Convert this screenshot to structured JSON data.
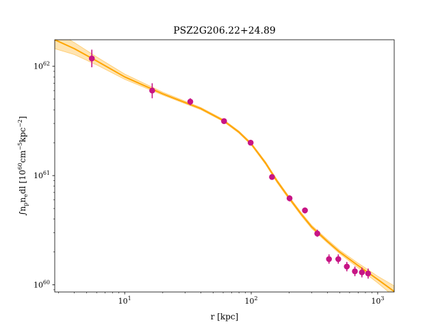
{
  "chart_data": {
    "type": "scatter",
    "title": "PSZ2G206.22+24.89",
    "xlabel": "r [kpc]",
    "ylabel_parts": {
      "integral": "∫",
      "n": "n",
      "p": "p",
      "e": "e",
      "dl": "dl [10",
      "e60": "60",
      "cm": "cm",
      "em5": "−5",
      "kpc": "kpc",
      "em2": "−2",
      "close": "]"
    },
    "x_scale": "log",
    "y_scale": "log",
    "xlim": [
      2.8,
      1350
    ],
    "ylim": [
      8.6e+59,
      1.75e+62
    ],
    "x_ticks": [
      {
        "value": 10,
        "base": "10",
        "exp": "1"
      },
      {
        "value": 100,
        "base": "10",
        "exp": "2"
      },
      {
        "value": 1000,
        "base": "10",
        "exp": "3"
      }
    ],
    "y_ticks": [
      {
        "value": 1e+60,
        "base": "10",
        "exp": "60"
      },
      {
        "value": 1e+61,
        "base": "10",
        "exp": "61"
      },
      {
        "value": 1e+62,
        "base": "10",
        "exp": "62"
      }
    ],
    "grid": false,
    "series": [
      {
        "type": "scatter_errorbar",
        "color": "#c71585",
        "points": [
          {
            "x": 5.5,
            "y": 1.18e+62,
            "ylo": 9.8e+61,
            "yhi": 1.42e+62
          },
          {
            "x": 16.5,
            "y": 6e+61,
            "ylo": 5.1e+61,
            "yhi": 7e+61
          },
          {
            "x": 33,
            "y": 4.75e+61,
            "ylo": 4.4e+61,
            "yhi": 5.1e+61
          },
          {
            "x": 61,
            "y": 3.15e+61,
            "ylo": 3e+61,
            "yhi": 3.3e+61
          },
          {
            "x": 99,
            "y": 2e+61,
            "ylo": 1.92e+61,
            "yhi": 2.1e+61
          },
          {
            "x": 146,
            "y": 9.7e+60,
            "ylo": 9.3e+60,
            "yhi": 1.01e+61
          },
          {
            "x": 201,
            "y": 6.2e+60,
            "ylo": 5.8e+60,
            "yhi": 6.6e+60
          },
          {
            "x": 266,
            "y": 4.8e+60,
            "ylo": 4.5e+60,
            "yhi": 5.1e+60
          },
          {
            "x": 333,
            "y": 2.95e+60,
            "ylo": 2.75e+60,
            "yhi": 3.2e+60
          },
          {
            "x": 412,
            "y": 1.72e+60,
            "ylo": 1.56e+60,
            "yhi": 1.9e+60
          },
          {
            "x": 488,
            "y": 1.72e+60,
            "ylo": 1.56e+60,
            "yhi": 1.9e+60
          },
          {
            "x": 570,
            "y": 1.47e+60,
            "ylo": 1.33e+60,
            "yhi": 1.62e+60
          },
          {
            "x": 660,
            "y": 1.33e+60,
            "ylo": 1.2e+60,
            "yhi": 1.47e+60
          },
          {
            "x": 750,
            "y": 1.3e+60,
            "ylo": 1.17e+60,
            "yhi": 1.44e+60
          },
          {
            "x": 840,
            "y": 1.27e+60,
            "ylo": 1.14e+60,
            "yhi": 1.41e+60
          }
        ]
      },
      {
        "type": "model_line_band",
        "color": "#ffa500",
        "band_color": "#ffa500",
        "points": [
          {
            "x": 2.8,
            "y": 1.75e+62,
            "lo": 1.45e+62,
            "hi": 2.1e+62
          },
          {
            "x": 4,
            "y": 1.45e+62,
            "lo": 1.28e+62,
            "hi": 1.65e+62
          },
          {
            "x": 6,
            "y": 1.12e+62,
            "lo": 1.03e+62,
            "hi": 1.22e+62
          },
          {
            "x": 10,
            "y": 8e+61,
            "lo": 7.6e+61,
            "hi": 8.5e+61
          },
          {
            "x": 20,
            "y": 5.6e+61,
            "lo": 5.45e+61,
            "hi": 5.8e+61
          },
          {
            "x": 40,
            "y": 4.1e+61,
            "lo": 4e+61,
            "hi": 4.2e+61
          },
          {
            "x": 60,
            "y": 3.2e+61,
            "lo": 3.13e+61,
            "hi": 3.28e+61
          },
          {
            "x": 80,
            "y": 2.5e+61,
            "lo": 2.44e+61,
            "hi": 2.56e+61
          },
          {
            "x": 100,
            "y": 1.95e+61,
            "lo": 1.9e+61,
            "hi": 2e+61
          },
          {
            "x": 130,
            "y": 1.3e+61,
            "lo": 1.26e+61,
            "hi": 1.34e+61
          },
          {
            "x": 160,
            "y": 8.9e+60,
            "lo": 8.6e+60,
            "hi": 9.2e+60
          },
          {
            "x": 200,
            "y": 6.2e+60,
            "lo": 6e+60,
            "hi": 6.4e+60
          },
          {
            "x": 250,
            "y": 4.4e+60,
            "lo": 4.25e+60,
            "hi": 4.55e+60
          },
          {
            "x": 300,
            "y": 3.4e+60,
            "lo": 3.28e+60,
            "hi": 3.52e+60
          },
          {
            "x": 400,
            "y": 2.5e+60,
            "lo": 2.42e+60,
            "hi": 2.6e+60
          },
          {
            "x": 500,
            "y": 2e+60,
            "lo": 1.93e+60,
            "hi": 2.08e+60
          },
          {
            "x": 700,
            "y": 1.5e+60,
            "lo": 1.43e+60,
            "hi": 1.58e+60
          },
          {
            "x": 1000,
            "y": 1.12e+60,
            "lo": 1.04e+60,
            "hi": 1.2e+60
          },
          {
            "x": 1350,
            "y": 8.7e+59,
            "lo": 7.8e+59,
            "hi": 9.8e+59
          }
        ]
      }
    ]
  }
}
